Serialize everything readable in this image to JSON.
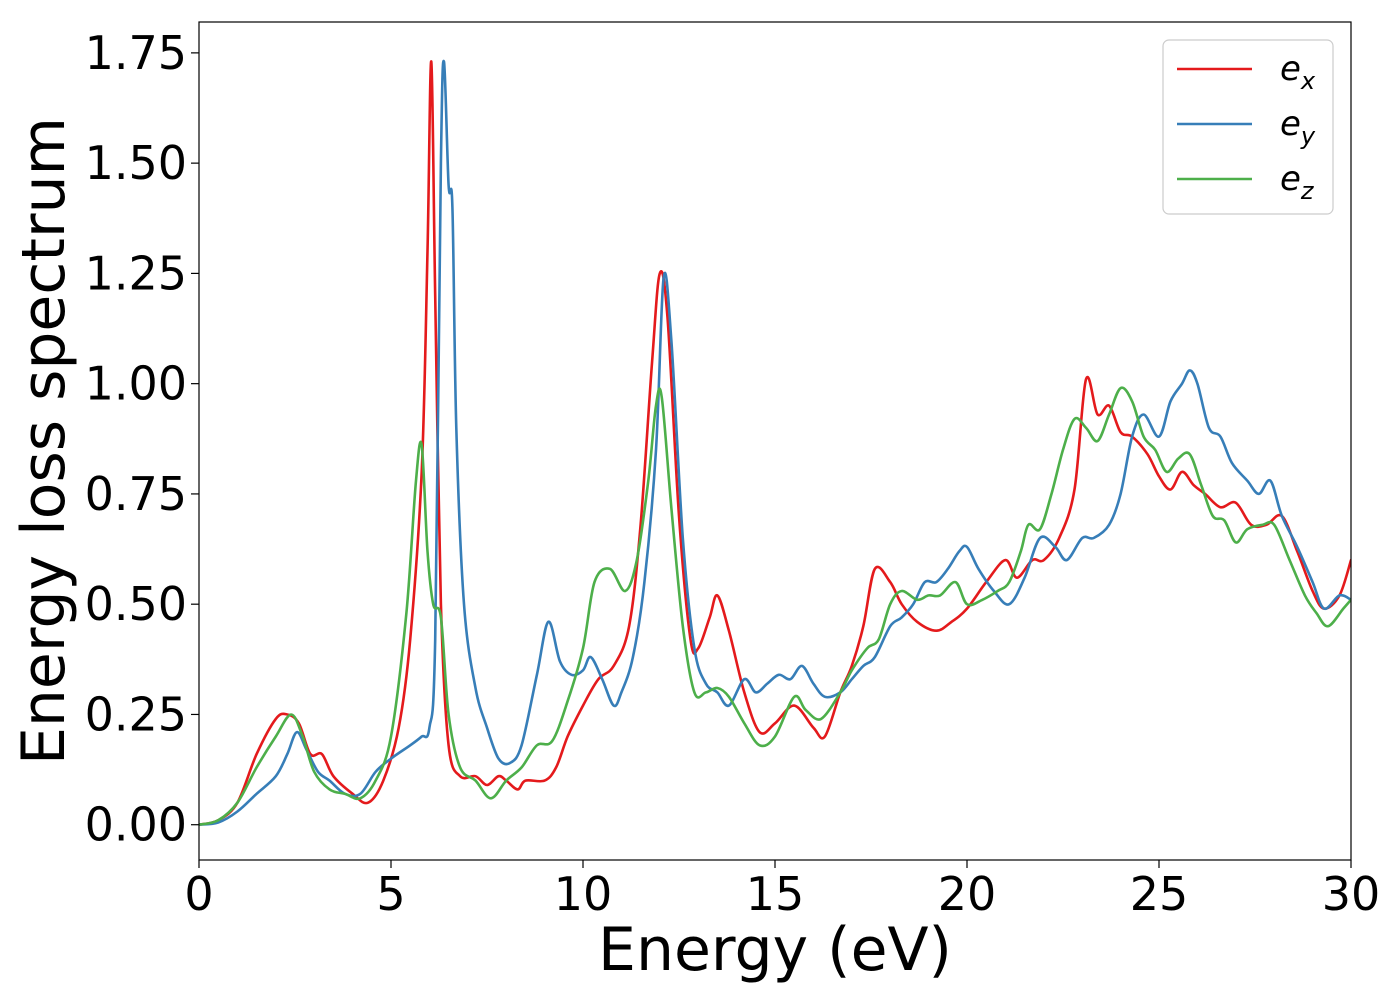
{
  "chart_data": {
    "type": "line",
    "title": "",
    "xlabel": "Energy (eV)",
    "ylabel": "Energy loss spectrum",
    "xlim": [
      0,
      30
    ],
    "ylim": [
      -0.08,
      1.82
    ],
    "xticks": [
      0,
      5,
      10,
      15,
      20,
      25,
      30
    ],
    "xtick_labels": [
      "0",
      "5",
      "10",
      "15",
      "20",
      "25",
      "30"
    ],
    "yticks": [
      0.0,
      0.25,
      0.5,
      0.75,
      1.0,
      1.25,
      1.5,
      1.75
    ],
    "ytick_labels": [
      "0.00",
      "0.25",
      "0.50",
      "0.75",
      "1.00",
      "1.25",
      "1.50",
      "1.75"
    ],
    "grid": false,
    "legend_position": "top-right",
    "series": [
      {
        "name": "e_x",
        "label_base": "e",
        "label_sub": "x",
        "color": "#e41a1c",
        "points": [
          [
            0,
            0
          ],
          [
            0.5,
            0.01
          ],
          [
            1.0,
            0.05
          ],
          [
            1.5,
            0.16
          ],
          [
            2.0,
            0.24
          ],
          [
            2.3,
            0.25
          ],
          [
            2.6,
            0.23
          ],
          [
            2.9,
            0.16
          ],
          [
            3.2,
            0.16
          ],
          [
            3.5,
            0.11
          ],
          [
            4.0,
            0.07
          ],
          [
            4.4,
            0.05
          ],
          [
            4.8,
            0.1
          ],
          [
            5.2,
            0.22
          ],
          [
            5.5,
            0.42
          ],
          [
            5.8,
            0.8
          ],
          [
            5.95,
            1.3
          ],
          [
            6.05,
            1.73
          ],
          [
            6.15,
            1.2
          ],
          [
            6.3,
            0.5
          ],
          [
            6.5,
            0.18
          ],
          [
            6.8,
            0.11
          ],
          [
            7.2,
            0.11
          ],
          [
            7.5,
            0.09
          ],
          [
            7.8,
            0.11
          ],
          [
            8.0,
            0.1
          ],
          [
            8.3,
            0.08
          ],
          [
            8.5,
            0.1
          ],
          [
            9.0,
            0.1
          ],
          [
            9.3,
            0.13
          ],
          [
            9.6,
            0.2
          ],
          [
            10.0,
            0.27
          ],
          [
            10.4,
            0.33
          ],
          [
            10.8,
            0.36
          ],
          [
            11.2,
            0.45
          ],
          [
            11.5,
            0.68
          ],
          [
            11.8,
            1.05
          ],
          [
            12.0,
            1.25
          ],
          [
            12.2,
            1.15
          ],
          [
            12.5,
            0.7
          ],
          [
            12.8,
            0.42
          ],
          [
            13.0,
            0.4
          ],
          [
            13.3,
            0.47
          ],
          [
            13.5,
            0.52
          ],
          [
            13.8,
            0.44
          ],
          [
            14.2,
            0.3
          ],
          [
            14.6,
            0.21
          ],
          [
            15.0,
            0.23
          ],
          [
            15.5,
            0.27
          ],
          [
            16.0,
            0.22
          ],
          [
            16.3,
            0.2
          ],
          [
            16.7,
            0.3
          ],
          [
            17.0,
            0.36
          ],
          [
            17.3,
            0.45
          ],
          [
            17.6,
            0.58
          ],
          [
            18.0,
            0.55
          ],
          [
            18.3,
            0.5
          ],
          [
            18.7,
            0.46
          ],
          [
            19.2,
            0.44
          ],
          [
            19.6,
            0.46
          ],
          [
            20.0,
            0.49
          ],
          [
            20.5,
            0.55
          ],
          [
            21.0,
            0.6
          ],
          [
            21.3,
            0.56
          ],
          [
            21.7,
            0.6
          ],
          [
            22.0,
            0.6
          ],
          [
            22.4,
            0.65
          ],
          [
            22.8,
            0.76
          ],
          [
            23.1,
            1.01
          ],
          [
            23.4,
            0.93
          ],
          [
            23.7,
            0.95
          ],
          [
            24.0,
            0.89
          ],
          [
            24.3,
            0.88
          ],
          [
            24.7,
            0.84
          ],
          [
            25.0,
            0.79
          ],
          [
            25.3,
            0.76
          ],
          [
            25.6,
            0.8
          ],
          [
            25.9,
            0.77
          ],
          [
            26.2,
            0.75
          ],
          [
            26.6,
            0.72
          ],
          [
            27.0,
            0.73
          ],
          [
            27.4,
            0.68
          ],
          [
            27.8,
            0.68
          ],
          [
            28.2,
            0.7
          ],
          [
            28.6,
            0.62
          ],
          [
            29.0,
            0.53
          ],
          [
            29.3,
            0.49
          ],
          [
            29.7,
            0.52
          ],
          [
            30.0,
            0.6
          ]
        ]
      },
      {
        "name": "e_y",
        "label_base": "e",
        "label_sub": "y",
        "color": "#377eb8",
        "points": [
          [
            0,
            0
          ],
          [
            0.5,
            0.005
          ],
          [
            1.0,
            0.03
          ],
          [
            1.5,
            0.07
          ],
          [
            2.0,
            0.11
          ],
          [
            2.3,
            0.16
          ],
          [
            2.55,
            0.21
          ],
          [
            2.8,
            0.17
          ],
          [
            3.1,
            0.12
          ],
          [
            3.4,
            0.1
          ],
          [
            3.8,
            0.07
          ],
          [
            4.2,
            0.07
          ],
          [
            4.6,
            0.12
          ],
          [
            5.0,
            0.15
          ],
          [
            5.5,
            0.18
          ],
          [
            5.8,
            0.2
          ],
          [
            6.0,
            0.22
          ],
          [
            6.15,
            0.42
          ],
          [
            6.3,
            1.5
          ],
          [
            6.38,
            1.73
          ],
          [
            6.5,
            1.45
          ],
          [
            6.6,
            1.4
          ],
          [
            6.7,
            0.9
          ],
          [
            6.9,
            0.5
          ],
          [
            7.2,
            0.31
          ],
          [
            7.5,
            0.22
          ],
          [
            7.8,
            0.15
          ],
          [
            8.1,
            0.14
          ],
          [
            8.4,
            0.18
          ],
          [
            8.8,
            0.34
          ],
          [
            9.1,
            0.46
          ],
          [
            9.4,
            0.37
          ],
          [
            9.7,
            0.34
          ],
          [
            10.0,
            0.35
          ],
          [
            10.2,
            0.38
          ],
          [
            10.5,
            0.33
          ],
          [
            10.8,
            0.27
          ],
          [
            11.0,
            0.3
          ],
          [
            11.3,
            0.38
          ],
          [
            11.6,
            0.55
          ],
          [
            11.9,
            0.85
          ],
          [
            12.1,
            1.24
          ],
          [
            12.3,
            1.1
          ],
          [
            12.6,
            0.65
          ],
          [
            12.9,
            0.4
          ],
          [
            13.2,
            0.32
          ],
          [
            13.5,
            0.3
          ],
          [
            13.8,
            0.27
          ],
          [
            14.2,
            0.33
          ],
          [
            14.5,
            0.3
          ],
          [
            14.8,
            0.32
          ],
          [
            15.1,
            0.34
          ],
          [
            15.4,
            0.33
          ],
          [
            15.7,
            0.36
          ],
          [
            16.0,
            0.32
          ],
          [
            16.3,
            0.29
          ],
          [
            16.7,
            0.3
          ],
          [
            17.0,
            0.33
          ],
          [
            17.3,
            0.36
          ],
          [
            17.6,
            0.38
          ],
          [
            18.0,
            0.45
          ],
          [
            18.3,
            0.47
          ],
          [
            18.6,
            0.5
          ],
          [
            18.9,
            0.55
          ],
          [
            19.2,
            0.55
          ],
          [
            19.5,
            0.58
          ],
          [
            19.8,
            0.62
          ],
          [
            20.0,
            0.63
          ],
          [
            20.3,
            0.58
          ],
          [
            20.7,
            0.53
          ],
          [
            21.1,
            0.5
          ],
          [
            21.5,
            0.56
          ],
          [
            21.9,
            0.65
          ],
          [
            22.3,
            0.63
          ],
          [
            22.6,
            0.6
          ],
          [
            23.0,
            0.65
          ],
          [
            23.3,
            0.65
          ],
          [
            23.7,
            0.68
          ],
          [
            24.0,
            0.75
          ],
          [
            24.3,
            0.88
          ],
          [
            24.6,
            0.93
          ],
          [
            25.0,
            0.88
          ],
          [
            25.3,
            0.96
          ],
          [
            25.6,
            1.0
          ],
          [
            25.8,
            1.03
          ],
          [
            26.0,
            1.0
          ],
          [
            26.3,
            0.9
          ],
          [
            26.6,
            0.88
          ],
          [
            26.9,
            0.82
          ],
          [
            27.3,
            0.78
          ],
          [
            27.6,
            0.75
          ],
          [
            27.9,
            0.78
          ],
          [
            28.2,
            0.7
          ],
          [
            28.6,
            0.63
          ],
          [
            29.0,
            0.55
          ],
          [
            29.3,
            0.49
          ],
          [
            29.7,
            0.52
          ],
          [
            30.0,
            0.51
          ]
        ]
      },
      {
        "name": "e_z",
        "label_base": "e",
        "label_sub": "z",
        "color": "#4daf4a",
        "points": [
          [
            0,
            0
          ],
          [
            0.5,
            0.01
          ],
          [
            1.0,
            0.05
          ],
          [
            1.5,
            0.13
          ],
          [
            2.0,
            0.2
          ],
          [
            2.4,
            0.25
          ],
          [
            2.7,
            0.2
          ],
          [
            3.0,
            0.12
          ],
          [
            3.4,
            0.08
          ],
          [
            3.8,
            0.07
          ],
          [
            4.2,
            0.06
          ],
          [
            4.6,
            0.1
          ],
          [
            5.0,
            0.2
          ],
          [
            5.4,
            0.48
          ],
          [
            5.65,
            0.78
          ],
          [
            5.8,
            0.86
          ],
          [
            5.95,
            0.62
          ],
          [
            6.1,
            0.5
          ],
          [
            6.3,
            0.47
          ],
          [
            6.5,
            0.25
          ],
          [
            6.8,
            0.13
          ],
          [
            7.2,
            0.1
          ],
          [
            7.6,
            0.06
          ],
          [
            8.0,
            0.1
          ],
          [
            8.4,
            0.13
          ],
          [
            8.8,
            0.18
          ],
          [
            9.2,
            0.19
          ],
          [
            9.6,
            0.28
          ],
          [
            10.0,
            0.4
          ],
          [
            10.3,
            0.55
          ],
          [
            10.7,
            0.58
          ],
          [
            11.1,
            0.53
          ],
          [
            11.4,
            0.6
          ],
          [
            11.7,
            0.78
          ],
          [
            11.9,
            0.95
          ],
          [
            12.05,
            0.97
          ],
          [
            12.3,
            0.72
          ],
          [
            12.6,
            0.45
          ],
          [
            12.9,
            0.3
          ],
          [
            13.2,
            0.3
          ],
          [
            13.5,
            0.31
          ],
          [
            13.8,
            0.29
          ],
          [
            14.2,
            0.23
          ],
          [
            14.6,
            0.18
          ],
          [
            15.0,
            0.2
          ],
          [
            15.5,
            0.29
          ],
          [
            15.8,
            0.26
          ],
          [
            16.2,
            0.24
          ],
          [
            16.7,
            0.3
          ],
          [
            17.0,
            0.35
          ],
          [
            17.4,
            0.4
          ],
          [
            17.7,
            0.42
          ],
          [
            18.0,
            0.5
          ],
          [
            18.3,
            0.53
          ],
          [
            18.7,
            0.51
          ],
          [
            19.0,
            0.52
          ],
          [
            19.3,
            0.52
          ],
          [
            19.7,
            0.55
          ],
          [
            20.0,
            0.5
          ],
          [
            20.4,
            0.51
          ],
          [
            20.8,
            0.53
          ],
          [
            21.1,
            0.55
          ],
          [
            21.4,
            0.62
          ],
          [
            21.6,
            0.68
          ],
          [
            21.9,
            0.67
          ],
          [
            22.2,
            0.75
          ],
          [
            22.5,
            0.85
          ],
          [
            22.8,
            0.92
          ],
          [
            23.1,
            0.9
          ],
          [
            23.4,
            0.87
          ],
          [
            23.7,
            0.93
          ],
          [
            24.0,
            0.99
          ],
          [
            24.3,
            0.96
          ],
          [
            24.6,
            0.88
          ],
          [
            24.9,
            0.85
          ],
          [
            25.2,
            0.8
          ],
          [
            25.5,
            0.83
          ],
          [
            25.8,
            0.84
          ],
          [
            26.1,
            0.77
          ],
          [
            26.4,
            0.7
          ],
          [
            26.7,
            0.69
          ],
          [
            27.0,
            0.64
          ],
          [
            27.3,
            0.67
          ],
          [
            27.7,
            0.68
          ],
          [
            28.0,
            0.68
          ],
          [
            28.4,
            0.6
          ],
          [
            28.8,
            0.52
          ],
          [
            29.1,
            0.48
          ],
          [
            29.4,
            0.45
          ],
          [
            29.8,
            0.49
          ],
          [
            30.0,
            0.51
          ]
        ]
      }
    ]
  }
}
